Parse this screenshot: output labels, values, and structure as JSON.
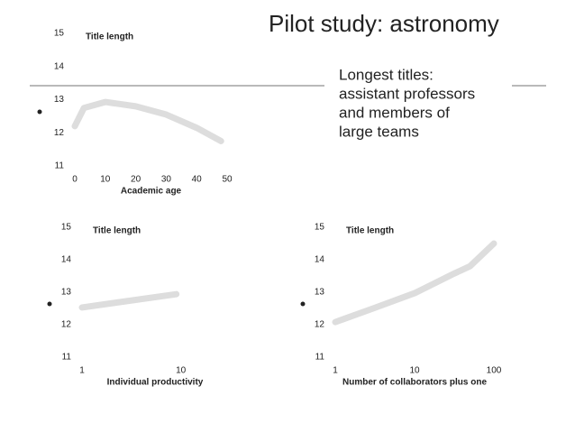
{
  "title": "Pilot study: astronomy",
  "text_lines": [
    "Longest titles:",
    "assistant professors",
    "and members of",
    "large teams"
  ],
  "chart_data": [
    {
      "type": "line",
      "y_label": "Title length",
      "x_label": "Academic age",
      "x": [
        0,
        3,
        10,
        20,
        30,
        40,
        48
      ],
      "values": [
        12.2,
        12.75,
        12.93,
        12.8,
        12.55,
        12.15,
        11.75
      ],
      "color": "#dddddd",
      "xlim": [
        0,
        50
      ],
      "xticks": [
        0,
        10,
        20,
        30,
        40,
        50
      ],
      "ylim": [
        11,
        15
      ],
      "yticks": [
        11,
        12,
        13,
        14,
        15
      ],
      "x_log": false
    },
    {
      "type": "line",
      "y_label": "Title length",
      "x_label": "Individual productivity",
      "x": [
        1,
        9
      ],
      "values": [
        12.53,
        12.94
      ],
      "color": "#dddddd",
      "xlim": [
        1,
        30
      ],
      "xticks": [
        1,
        10
      ],
      "ylim": [
        11,
        15
      ],
      "yticks": [
        11,
        12,
        13,
        14,
        15
      ],
      "x_log": true
    },
    {
      "type": "line",
      "y_label": "Title length",
      "x_label": "Number of collaborators plus one",
      "x": [
        1,
        3,
        10,
        30,
        50,
        100
      ],
      "values": [
        12.08,
        12.5,
        12.97,
        13.55,
        13.8,
        14.5
      ],
      "color": "#dddddd",
      "xlim": [
        1,
        100
      ],
      "xticks": [
        1,
        10,
        100
      ],
      "ylim": [
        11,
        15
      ],
      "yticks": [
        11,
        12,
        13,
        14,
        15
      ],
      "x_log": true
    }
  ]
}
